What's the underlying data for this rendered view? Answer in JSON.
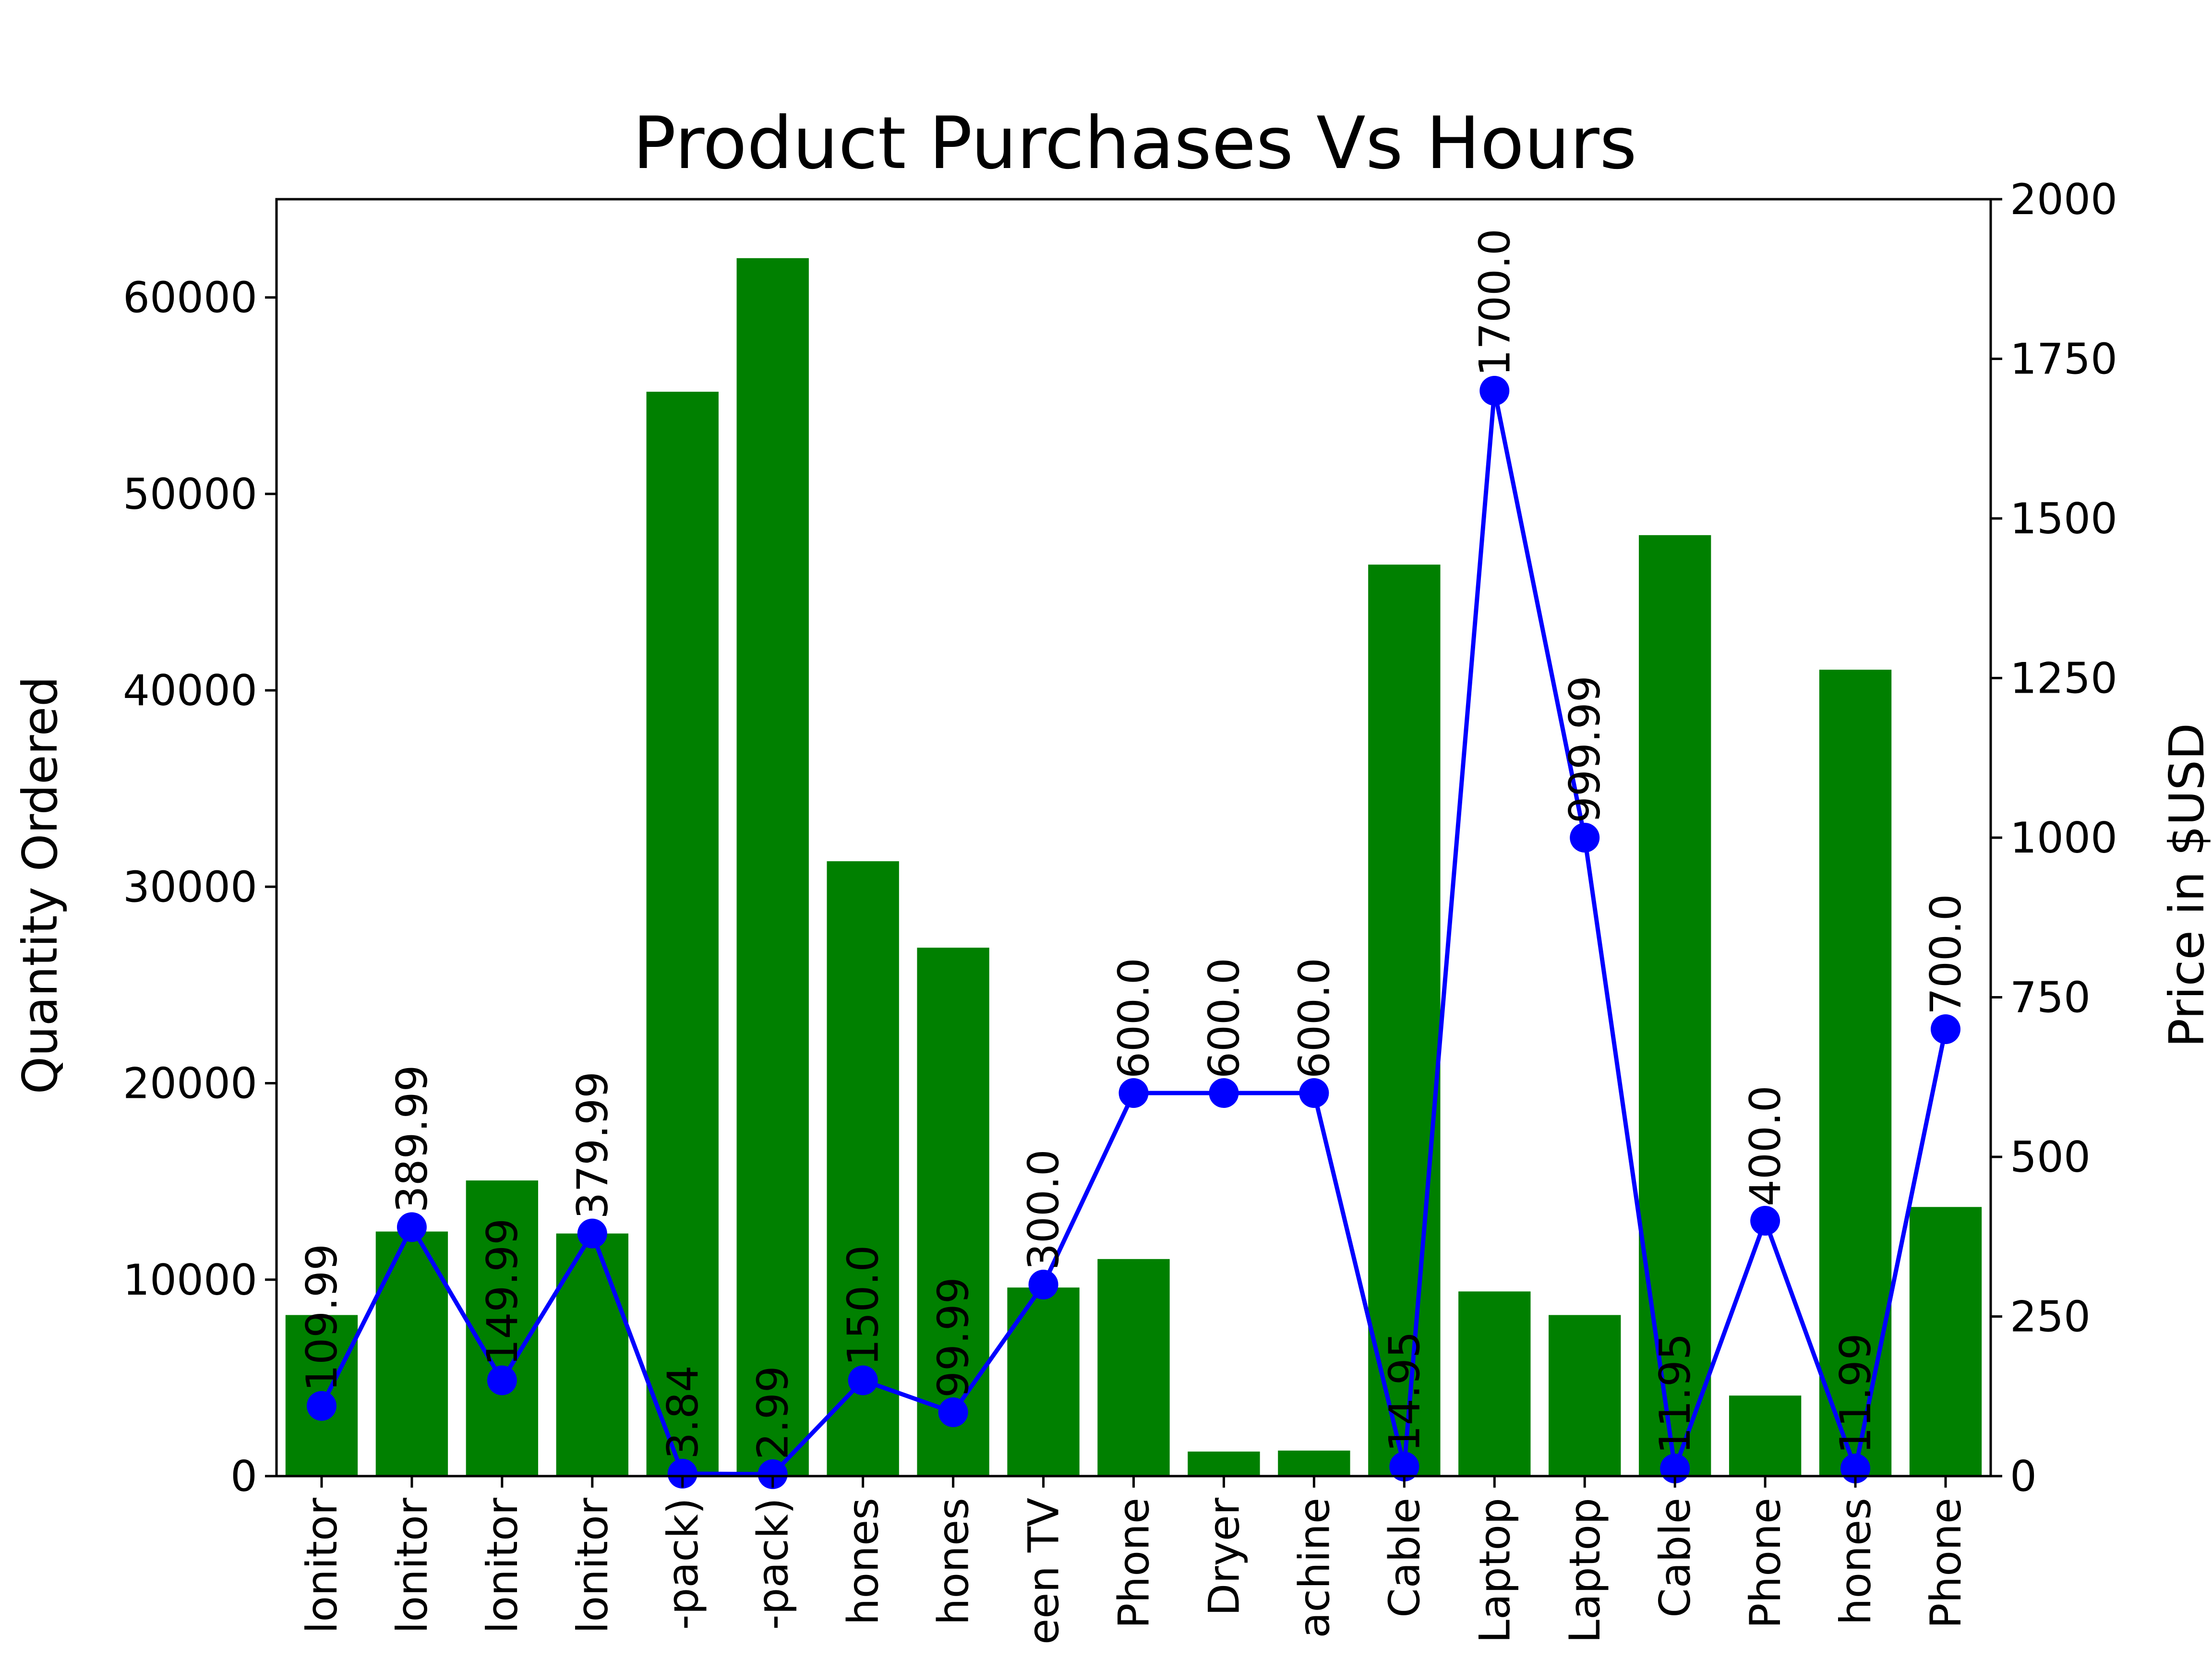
{
  "colors": {
    "bars": "#008000",
    "line": "#0000ff",
    "axes": "#000000"
  },
  "chart_data": {
    "type": "bar",
    "title": "Product Purchases Vs Hours",
    "xlabel": "",
    "ylabel": "Quantity Ordered",
    "y2label": "Price in $USD",
    "ylim": [
      0,
      65000
    ],
    "y2lim": [
      0,
      2000
    ],
    "yticks": [
      "0",
      "10000",
      "20000",
      "30000",
      "40000",
      "50000",
      "60000"
    ],
    "y2ticks": [
      "0",
      "250",
      "500",
      "750",
      "1000",
      "1250",
      "1500",
      "1750",
      "2000"
    ],
    "categories": [
      "lonitor",
      "lonitor",
      "lonitor",
      "lonitor",
      "-pack)",
      "-pack)",
      "hones",
      "hones",
      "een TV",
      "Phone",
      "Dryer",
      "achine",
      "Cable",
      "Laptop",
      "Laptop",
      "Cable",
      "Phone",
      "hones",
      "Phone"
    ],
    "series": [
      {
        "type": "bar",
        "axis": "left",
        "values": [
          8200,
          12450,
          15050,
          12350,
          55200,
          62000,
          31300,
          26900,
          9600,
          11050,
          1250,
          1300,
          46400,
          9400,
          8200,
          47900,
          4100,
          41050,
          13700
        ]
      },
      {
        "type": "line",
        "axis": "right",
        "values": [
          109.99,
          389.99,
          149.99,
          379.99,
          3.84,
          2.99,
          150.0,
          99.99,
          300.0,
          600.0,
          600.0,
          600.0,
          14.95,
          1700.0,
          999.99,
          11.95,
          400.0,
          11.99,
          700.0
        ],
        "labels": [
          "109.99",
          "389.99",
          "149.99",
          "379.99",
          "3.84",
          "2.99",
          "150.0",
          "99.99",
          "300.0",
          "600.0",
          "600.0",
          "600.0",
          "14.95",
          "1700.0",
          "999.99",
          "11.95",
          "400.0",
          "11.99",
          "700.0"
        ]
      }
    ]
  }
}
